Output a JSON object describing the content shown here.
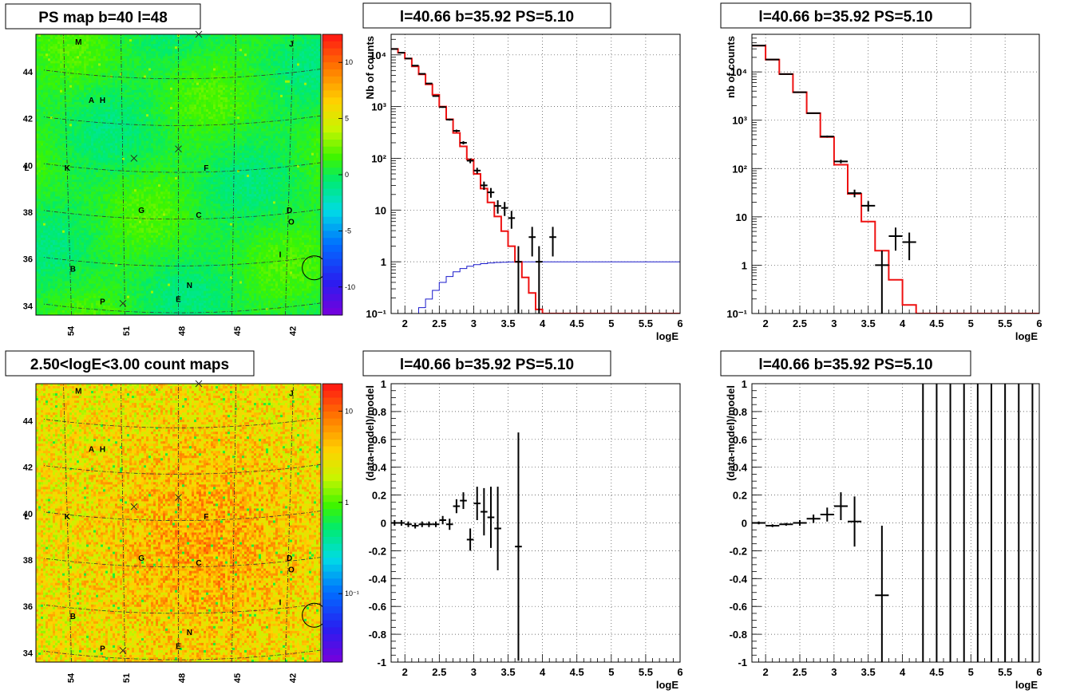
{
  "maps": [
    {
      "title": "PS map b=40 l=48",
      "colorscale": "diverging",
      "colorbar_ticks": [
        "10",
        "5",
        "0",
        "-5",
        "-10"
      ],
      "colorbar_values": [
        10,
        5,
        0,
        -5,
        -10
      ],
      "colorbar_range": [
        -12.5,
        12.5
      ],
      "x_ticks": [
        "54",
        "51",
        "48",
        "45",
        "42"
      ],
      "y_ticks": [
        "44",
        "42",
        "40",
        "38",
        "36",
        "34"
      ]
    },
    {
      "title": "2.50<logE<3.00 count maps",
      "colorscale": "counts",
      "colorbar_ticks": [
        "10",
        "1",
        "10⁻¹"
      ],
      "colorbar_values": [
        1,
        0,
        -1
      ],
      "colorbar_range": [
        -1.75,
        1.3
      ],
      "x_ticks": [
        "54",
        "51",
        "48",
        "45",
        "42"
      ],
      "y_ticks": [
        "44",
        "42",
        "40",
        "38",
        "36",
        "34"
      ]
    }
  ],
  "source_labels": [
    {
      "text": "M",
      "l": 53.4,
      "b": 45.6
    },
    {
      "text": "J",
      "l": 41.9,
      "b": 45.5
    },
    {
      "text": "A",
      "l": 52.7,
      "b": 43.1
    },
    {
      "text": "H",
      "l": 52.1,
      "b": 43.1
    },
    {
      "text": "L",
      "l": 56.2,
      "b": 40.2
    },
    {
      "text": "K",
      "l": 54.0,
      "b": 40.2
    },
    {
      "text": "F",
      "l": 46.5,
      "b": 40.2
    },
    {
      "text": "G",
      "l": 50.0,
      "b": 38.4
    },
    {
      "text": "C",
      "l": 46.9,
      "b": 38.2
    },
    {
      "text": "D",
      "l": 42.0,
      "b": 38.4
    },
    {
      "text": "O",
      "l": 41.9,
      "b": 37.9
    },
    {
      "text": "I",
      "l": 42.5,
      "b": 36.5
    },
    {
      "text": "B",
      "l": 53.7,
      "b": 35.9
    },
    {
      "text": "N",
      "l": 47.4,
      "b": 35.2
    },
    {
      "text": "E",
      "l": 48.0,
      "b": 34.6
    },
    {
      "text": "P",
      "l": 52.1,
      "b": 34.5
    }
  ],
  "cross_markers": [
    {
      "l": 46.9,
      "b": 45.9
    },
    {
      "l": 50.4,
      "b": 40.6
    },
    {
      "l": 48.0,
      "b": 41.0
    },
    {
      "l": 51.0,
      "b": 34.4
    }
  ],
  "circle_marker": {
    "l": 40.66,
    "b": 35.92
  },
  "chart_data": [
    {
      "type": "line",
      "title": "l=40.66 b=35.92 PS=5.10",
      "xlabel": "logE",
      "ylabel": "Nb of counts",
      "xlim": [
        1.8,
        6
      ],
      "ylim": [
        0.1,
        25000
      ],
      "yscale": "log",
      "grid": true,
      "x_ticks": [
        "2",
        "2.5",
        "3",
        "3.5",
        "4",
        "4.5",
        "5",
        "5.5",
        "6"
      ],
      "y_ticks": [
        "10⁴",
        "10³",
        "10²",
        "10",
        "1",
        "10⁻¹"
      ],
      "model_steps": {
        "edges": [
          1.8,
          1.9,
          2.0,
          2.1,
          2.2,
          2.3,
          2.4,
          2.5,
          2.6,
          2.7,
          2.8,
          2.9,
          3.0,
          3.1,
          3.2,
          3.3,
          3.4,
          3.5,
          3.6,
          3.7,
          3.8,
          3.9,
          4.0,
          4.1,
          6.0
        ],
        "values": [
          13000,
          11000,
          8500,
          6000,
          4200,
          2700,
          1700,
          1000,
          570,
          310,
          170,
          95,
          50,
          26,
          14,
          7.5,
          3.9,
          2.0,
          1.0,
          0.5,
          0.25,
          0.12,
          0.1,
          0.1
        ]
      },
      "background_steps": {
        "edges": [
          2.1,
          2.2,
          2.3,
          2.4,
          2.5,
          2.6,
          2.7,
          2.8,
          2.9,
          3.0,
          3.1,
          3.2,
          3.3,
          3.4,
          3.5,
          3.6,
          3.7,
          3.8,
          3.9,
          6.0
        ],
        "values": [
          0.1,
          0.13,
          0.19,
          0.28,
          0.4,
          0.52,
          0.64,
          0.74,
          0.82,
          0.88,
          0.92,
          0.95,
          0.97,
          0.98,
          0.99,
          1.0,
          1.0,
          1.0,
          1.0
        ]
      },
      "points": [
        {
          "x": 1.85,
          "y": 13000
        },
        {
          "x": 1.95,
          "y": 11000
        },
        {
          "x": 2.05,
          "y": 8500
        },
        {
          "x": 2.15,
          "y": 6200
        },
        {
          "x": 2.25,
          "y": 4300
        },
        {
          "x": 2.35,
          "y": 2800
        },
        {
          "x": 2.45,
          "y": 1600
        },
        {
          "x": 2.55,
          "y": 980
        },
        {
          "x": 2.65,
          "y": 560
        },
        {
          "x": 2.75,
          "y": 340
        },
        {
          "x": 2.85,
          "y": 200
        },
        {
          "x": 2.95,
          "y": 90
        },
        {
          "x": 3.05,
          "y": 58
        },
        {
          "x": 3.15,
          "y": 30
        },
        {
          "x": 3.25,
          "y": 22
        },
        {
          "x": 3.35,
          "y": 12
        },
        {
          "x": 3.45,
          "y": 11
        },
        {
          "x": 3.55,
          "y": 7
        },
        {
          "x": 3.65,
          "y": 1
        },
        {
          "x": 3.85,
          "y": 3
        },
        {
          "x": 3.95,
          "y": 1
        },
        {
          "x": 4.15,
          "y": 3
        }
      ]
    },
    {
      "type": "line",
      "title": "l=40.66 b=35.92 PS=5.10",
      "xlabel": "logE",
      "ylabel": "nb of counts",
      "xlim": [
        1.8,
        6
      ],
      "ylim": [
        0.1,
        60000
      ],
      "yscale": "log",
      "grid": true,
      "x_ticks": [
        "2",
        "2.5",
        "3",
        "3.5",
        "4",
        "4.5",
        "5",
        "5.5",
        "6"
      ],
      "y_ticks": [
        "10⁴",
        "10³",
        "10²",
        "10",
        "1",
        "10⁻¹"
      ],
      "model_steps": {
        "edges": [
          1.8,
          2.0,
          2.2,
          2.4,
          2.6,
          2.8,
          3.0,
          3.2,
          3.4,
          3.6,
          3.8,
          4.0,
          4.2,
          6.0
        ],
        "values": [
          35000,
          18000,
          9000,
          3800,
          1400,
          450,
          120,
          30,
          8,
          2,
          0.5,
          0.15,
          0.1
        ]
      },
      "points": [
        {
          "x": 1.9,
          "y": 35000
        },
        {
          "x": 2.1,
          "y": 18000
        },
        {
          "x": 2.3,
          "y": 9000
        },
        {
          "x": 2.5,
          "y": 3800
        },
        {
          "x": 2.7,
          "y": 1400
        },
        {
          "x": 2.9,
          "y": 460
        },
        {
          "x": 3.1,
          "y": 140
        },
        {
          "x": 3.3,
          "y": 31
        },
        {
          "x": 3.5,
          "y": 17
        },
        {
          "x": 3.7,
          "y": 1
        },
        {
          "x": 3.9,
          "y": 4
        },
        {
          "x": 4.1,
          "y": 3
        }
      ]
    },
    {
      "type": "scatter",
      "title": "l=40.66 b=35.92 PS=5.10",
      "xlabel": "logE",
      "ylabel": "(data-model)/model",
      "xlim": [
        1.8,
        6
      ],
      "ylim": [
        -1,
        1
      ],
      "grid": true,
      "x_ticks": [
        "2",
        "2.5",
        "3",
        "3.5",
        "4",
        "4.5",
        "5",
        "5.5",
        "6"
      ],
      "y_ticks": [
        "1",
        "0.8",
        "0.6",
        "0.4",
        "0.2",
        "0",
        "-0.2",
        "-0.4",
        "-0.6",
        "-0.8",
        "-1"
      ],
      "points": [
        {
          "x": 1.85,
          "y": 0.0,
          "err": 0.02
        },
        {
          "x": 1.95,
          "y": 0.0,
          "err": 0.02
        },
        {
          "x": 2.05,
          "y": -0.01,
          "err": 0.02
        },
        {
          "x": 2.15,
          "y": -0.02,
          "err": 0.02
        },
        {
          "x": 2.25,
          "y": -0.01,
          "err": 0.02
        },
        {
          "x": 2.35,
          "y": -0.01,
          "err": 0.02
        },
        {
          "x": 2.45,
          "y": -0.01,
          "err": 0.02
        },
        {
          "x": 2.55,
          "y": 0.02,
          "err": 0.03
        },
        {
          "x": 2.65,
          "y": -0.01,
          "err": 0.04
        },
        {
          "x": 2.75,
          "y": 0.12,
          "err": 0.05
        },
        {
          "x": 2.85,
          "y": 0.16,
          "err": 0.06
        },
        {
          "x": 2.95,
          "y": -0.12,
          "err": 0.08
        },
        {
          "x": 3.05,
          "y": 0.14,
          "err": 0.12
        },
        {
          "x": 3.15,
          "y": 0.08,
          "err": 0.17
        },
        {
          "x": 3.25,
          "y": 0.04,
          "err": 0.22
        },
        {
          "x": 3.35,
          "y": -0.04,
          "err": 0.3
        },
        {
          "x": 3.65,
          "y": -0.17,
          "err": 0.82
        }
      ]
    },
    {
      "type": "scatter",
      "title": "l=40.66 b=35.92 PS=5.10",
      "xlabel": "logE",
      "ylabel": "(data-model)/model",
      "xlim": [
        1.8,
        6
      ],
      "ylim": [
        -1,
        1
      ],
      "grid": true,
      "x_ticks": [
        "2",
        "2.5",
        "3",
        "3.5",
        "4",
        "4.5",
        "5",
        "5.5",
        "6"
      ],
      "y_ticks": [
        "1",
        "0.8",
        "0.6",
        "0.4",
        "0.2",
        "0",
        "-0.2",
        "-0.4",
        "-0.6",
        "-0.8",
        "-1"
      ],
      "points": [
        {
          "x": 1.9,
          "y": 0.0,
          "err": 0.01
        },
        {
          "x": 2.1,
          "y": -0.02,
          "err": 0.01
        },
        {
          "x": 2.3,
          "y": -0.01,
          "err": 0.01
        },
        {
          "x": 2.5,
          "y": 0.0,
          "err": 0.02
        },
        {
          "x": 2.7,
          "y": 0.03,
          "err": 0.03
        },
        {
          "x": 2.9,
          "y": 0.06,
          "err": 0.05
        },
        {
          "x": 3.1,
          "y": 0.12,
          "err": 0.1
        },
        {
          "x": 3.3,
          "y": 0.01,
          "err": 0.18
        },
        {
          "x": 3.7,
          "y": -0.52,
          "err": 0.5
        }
      ],
      "full_range_bars": [
        4.3,
        4.5,
        4.7,
        4.9,
        5.1,
        5.3,
        5.5,
        5.7,
        5.9
      ]
    }
  ]
}
